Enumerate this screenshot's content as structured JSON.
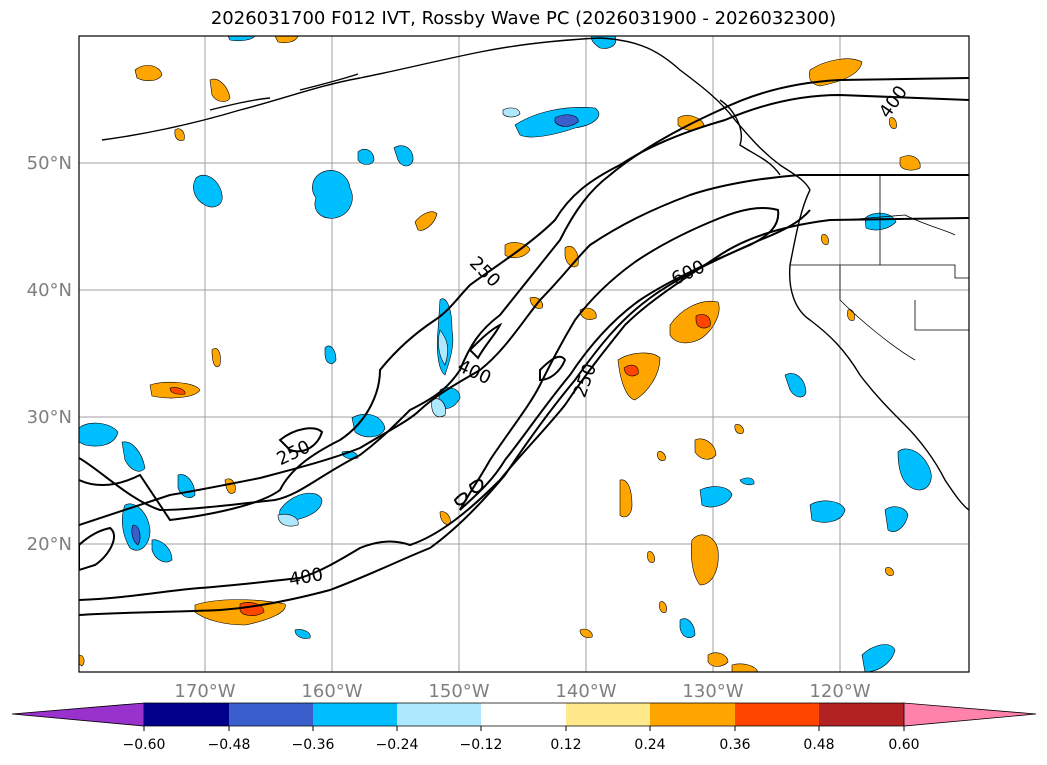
{
  "title": "2026031700 F012 IVT, Rossby Wave PC (2026031900 - 2026032300)",
  "lat_labels": [
    "50°N",
    "40°N",
    "30°N",
    "20°N"
  ],
  "lon_labels": [
    "170°W",
    "160°W",
    "150°W",
    "140°W",
    "130°W",
    "120°W"
  ],
  "contour_labels": [
    "250",
    "250",
    "250",
    "400",
    "400",
    "400",
    "600"
  ],
  "colorbar": {
    "ticks": [
      "−0.60",
      "−0.48",
      "−0.36",
      "−0.24",
      "−0.12",
      "0.12",
      "0.24",
      "0.36",
      "0.48",
      "0.60"
    ],
    "colors": [
      "#9932cc",
      "#00008b",
      "#3a5fcd",
      "#00bfff",
      "#ade8ff",
      "#ffffff",
      "#ffe98a",
      "#ffa500",
      "#ff4500",
      "#b22222",
      "#ff82ab"
    ]
  },
  "ivt_contour_levels": [
    250,
    400,
    600
  ],
  "pc_levels": [
    -0.6,
    -0.48,
    -0.36,
    -0.24,
    -0.12,
    0.12,
    0.24,
    0.36,
    0.48,
    0.6
  ]
}
